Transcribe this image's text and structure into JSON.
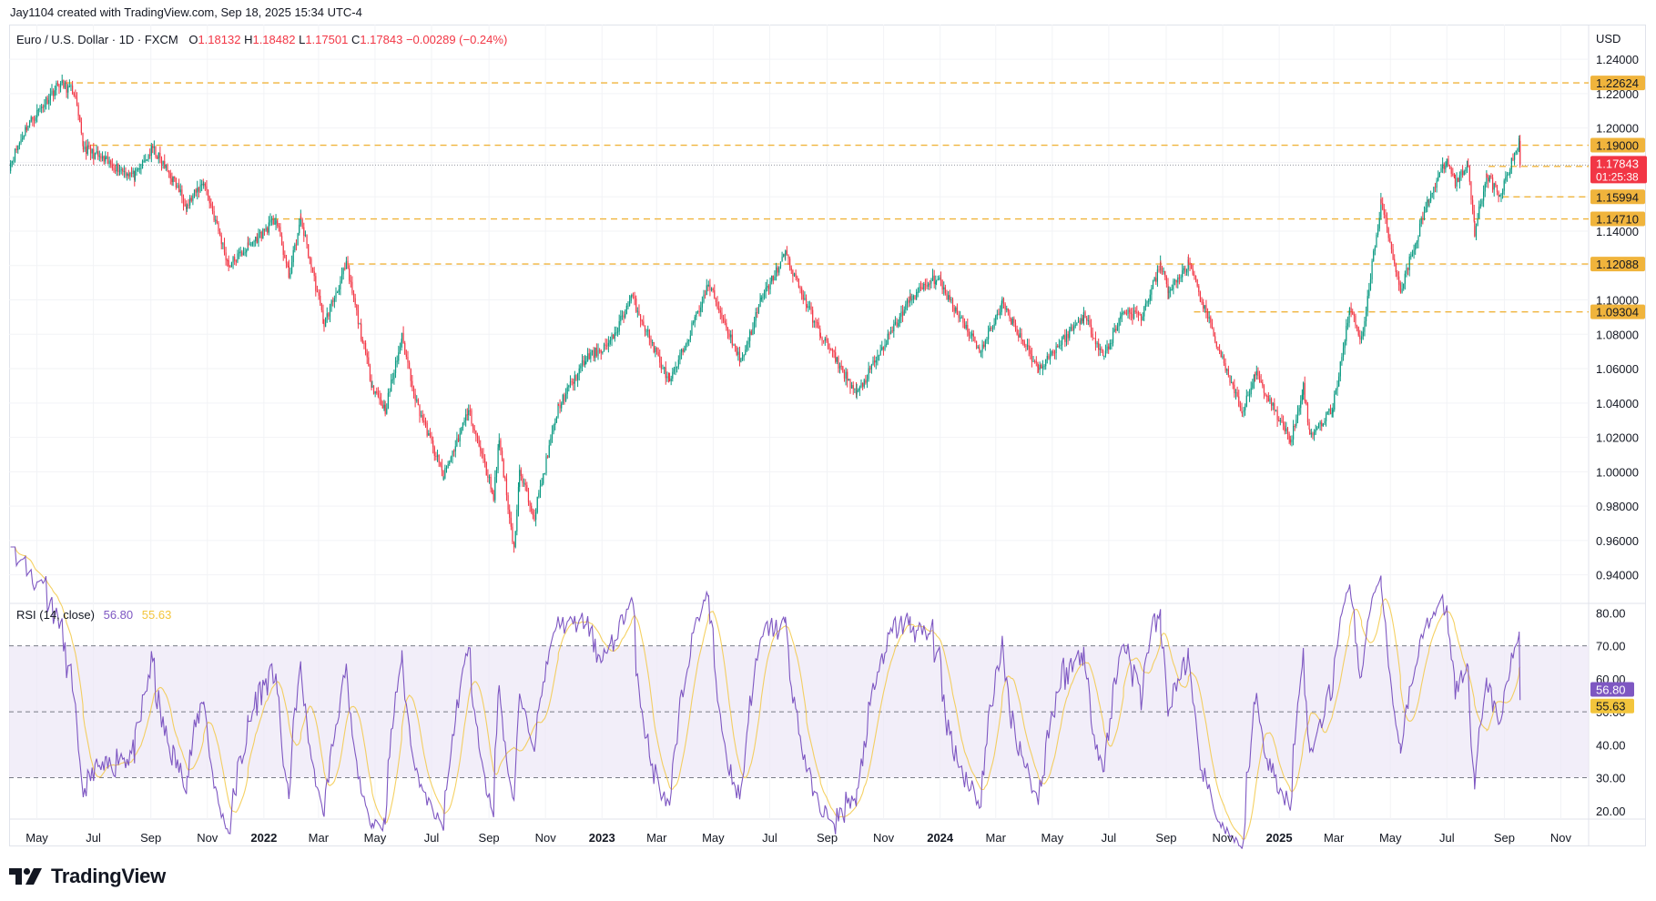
{
  "header": {
    "credit": "Jay1104 created with TradingView.com, Sep 18, 2025 15:34 UTC-4"
  },
  "legend": {
    "symbol": "Euro / U.S. Dollar · 1D · FXCM",
    "o_label": "O",
    "o_value": "1.18132",
    "h_label": "H",
    "h_value": "1.18482",
    "l_label": "L",
    "l_value": "1.17501",
    "c_label": "C",
    "c_value": "1.17843",
    "change": "−0.00289 (−0.24%)"
  },
  "rsi_legend": {
    "label": "RSI (14, close)",
    "rsi_value": "56.80",
    "ma_value": "55.63"
  },
  "brand": {
    "logo_text": "TradingView"
  },
  "colors": {
    "up": "#089981",
    "down": "#f23645",
    "level": "#f0b43c",
    "rsi_line": "#7e57c2",
    "rsi_ma": "#f3c53c",
    "rsi_band": "#ede7f6",
    "last_price": "#f23645"
  },
  "chart_data": [
    {
      "type": "candlestick",
      "title": "Euro / U.S. Dollar · 1D · FXCM",
      "currency": "USD",
      "y_ticks": [
        "1.24000",
        "1.22000",
        "1.20000",
        "1.18000",
        "1.16000",
        "1.14000",
        "1.12000",
        "1.10000",
        "1.08000",
        "1.06000",
        "1.04000",
        "1.02000",
        "1.00000",
        "0.98000",
        "0.96000",
        "0.94000"
      ],
      "ylim": [
        0.925,
        1.248
      ],
      "x_ticks": [
        "May",
        "Jul",
        "Sep",
        "Nov",
        "2022",
        "Mar",
        "May",
        "Jul",
        "Sep",
        "Nov",
        "2023",
        "Mar",
        "May",
        "Jul",
        "Sep",
        "Nov",
        "2024",
        "Mar",
        "May",
        "Jul",
        "Sep",
        "Nov",
        "2025",
        "Mar",
        "May",
        "Jul",
        "Sep",
        "Nov"
      ],
      "price_path": [
        [
          "2021-04-01",
          1.178
        ],
        [
          "2021-04-20",
          1.201
        ],
        [
          "2021-05-25",
          1.226
        ],
        [
          "2021-06-10",
          1.221
        ],
        [
          "2021-06-20",
          1.189
        ],
        [
          "2021-07-15",
          1.18
        ],
        [
          "2021-08-15",
          1.172
        ],
        [
          "2021-09-03",
          1.188
        ],
        [
          "2021-09-25",
          1.17
        ],
        [
          "2021-10-10",
          1.155
        ],
        [
          "2021-10-28",
          1.169
        ],
        [
          "2021-11-24",
          1.12
        ],
        [
          "2021-12-15",
          1.131
        ],
        [
          "2022-01-14",
          1.147
        ],
        [
          "2022-01-28",
          1.114
        ],
        [
          "2022-02-10",
          1.147
        ],
        [
          "2022-03-07",
          1.086
        ],
        [
          "2022-03-31",
          1.12
        ],
        [
          "2022-04-28",
          1.05
        ],
        [
          "2022-05-12",
          1.036
        ],
        [
          "2022-05-30",
          1.078
        ],
        [
          "2022-06-15",
          1.04
        ],
        [
          "2022-07-14",
          0.997
        ],
        [
          "2022-08-10",
          1.036
        ],
        [
          "2022-09-06",
          0.986
        ],
        [
          "2022-09-12",
          1.019
        ],
        [
          "2022-09-28",
          0.955
        ],
        [
          "2022-10-04",
          0.999
        ],
        [
          "2022-10-20",
          0.975
        ],
        [
          "2022-11-15",
          1.038
        ],
        [
          "2022-12-15",
          1.066
        ],
        [
          "2023-01-10",
          1.075
        ],
        [
          "2023-02-02",
          1.102
        ],
        [
          "2023-03-15",
          1.051
        ],
        [
          "2023-04-26",
          1.109
        ],
        [
          "2023-05-31",
          1.064
        ],
        [
          "2023-06-22",
          1.1
        ],
        [
          "2023-07-18",
          1.127
        ],
        [
          "2023-08-10",
          1.097
        ],
        [
          "2023-08-25",
          1.08
        ],
        [
          "2023-10-03",
          1.045
        ],
        [
          "2023-11-30",
          1.101
        ],
        [
          "2023-12-28",
          1.113
        ],
        [
          "2024-02-14",
          1.07
        ],
        [
          "2024-03-08",
          1.098
        ],
        [
          "2024-04-16",
          1.06
        ],
        [
          "2024-06-04",
          1.091
        ],
        [
          "2024-06-26",
          1.067
        ],
        [
          "2024-07-17",
          1.094
        ],
        [
          "2024-08-05",
          1.09
        ],
        [
          "2024-08-26",
          1.12
        ],
        [
          "2024-09-04",
          1.105
        ],
        [
          "2024-09-25",
          1.121
        ],
        [
          "2024-11-22",
          1.033
        ],
        [
          "2024-12-06",
          1.058
        ],
        [
          "2025-01-13",
          1.018
        ],
        [
          "2025-01-27",
          1.05
        ],
        [
          "2025-02-03",
          1.021
        ],
        [
          "2025-02-28",
          1.037
        ],
        [
          "2025-03-18",
          1.095
        ],
        [
          "2025-03-31",
          1.077
        ],
        [
          "2025-04-21",
          1.157
        ],
        [
          "2025-05-12",
          1.106
        ],
        [
          "2025-06-12",
          1.16
        ],
        [
          "2025-07-01",
          1.181
        ],
        [
          "2025-07-10",
          1.168
        ],
        [
          "2025-07-24",
          1.179
        ],
        [
          "2025-07-31",
          1.14
        ],
        [
          "2025-08-13",
          1.173
        ],
        [
          "2025-08-27",
          1.16
        ],
        [
          "2025-09-17",
          1.192
        ],
        [
          "2025-09-18",
          1.17843
        ]
      ],
      "levels": [
        {
          "label": "1.22624",
          "value": 1.22624,
          "from": "2021-06-01"
        },
        {
          "label": "1.19000",
          "value": 1.19,
          "from": "2021-06-28"
        },
        {
          "label": "1.15994",
          "value": 1.15994,
          "from": "2025-08-30"
        },
        {
          "label": "1.14710",
          "value": 1.1471,
          "from": "2022-01-10"
        },
        {
          "label": "1.12088",
          "value": 1.12088,
          "from": "2022-04-01"
        },
        {
          "label": "1.09304",
          "value": 1.09304,
          "from": "2024-10-01"
        },
        {
          "label": "1.17765",
          "value": 1.17765,
          "from": "2025-08-15"
        }
      ],
      "last_price": {
        "value": "1.17843",
        "countdown": "01:25:38"
      }
    },
    {
      "type": "line",
      "title": "RSI (14, close)",
      "y_ticks": [
        "80.00",
        "70.00",
        "60.00",
        "50.00",
        "40.00",
        "30.00",
        "20.00"
      ],
      "ylim": [
        18.0,
        81.5
      ],
      "band": [
        30,
        70
      ],
      "midline": 50,
      "series": [
        {
          "values_key": "rsi",
          "last": 56.8
        },
        {
          "values_key": "ma",
          "last": 55.63
        }
      ]
    }
  ]
}
